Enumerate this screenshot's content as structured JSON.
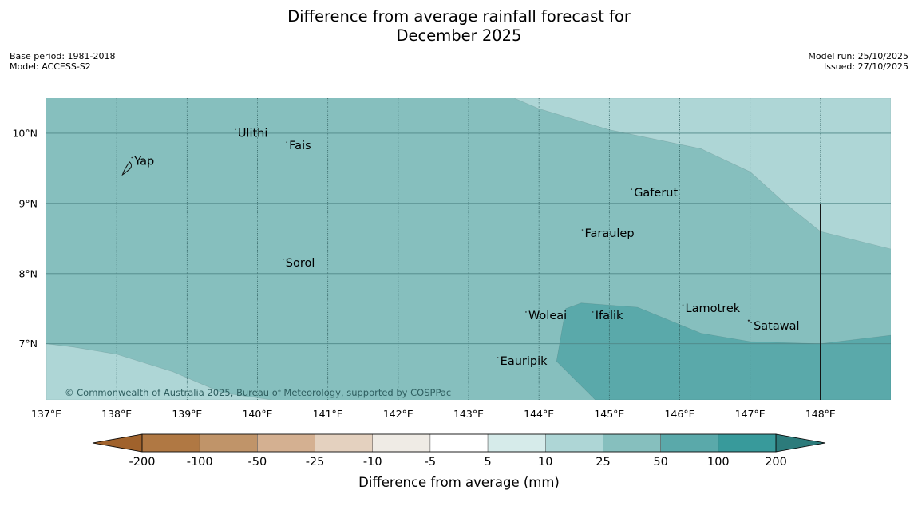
{
  "title": {
    "line1": "Difference from average rainfall forecast for",
    "line2": "December 2025"
  },
  "meta_left": {
    "base_period": "Base period: 1981-2018",
    "model": "Model: ACCESS-S2"
  },
  "meta_right": {
    "model_run": "Model run: 25/10/2025",
    "issued": "Issued: 27/10/2025"
  },
  "map": {
    "lon_range": [
      137,
      149
    ],
    "lat_range": [
      6.2,
      10.5
    ],
    "lon_ticks": [
      {
        "value": 137,
        "label": "137°E"
      },
      {
        "value": 138,
        "label": "138°E"
      },
      {
        "value": 139,
        "label": "139°E"
      },
      {
        "value": 140,
        "label": "140°E"
      },
      {
        "value": 141,
        "label": "141°E"
      },
      {
        "value": 142,
        "label": "142°E"
      },
      {
        "value": 143,
        "label": "143°E"
      },
      {
        "value": 144,
        "label": "144°E"
      },
      {
        "value": 145,
        "label": "145°E"
      },
      {
        "value": 146,
        "label": "146°E"
      },
      {
        "value": 147,
        "label": "147°E"
      },
      {
        "value": 148,
        "label": "148°E"
      }
    ],
    "lat_ticks": [
      {
        "value": 10,
        "label": "10°N"
      },
      {
        "value": 9,
        "label": "9°N"
      },
      {
        "value": 8,
        "label": "8°N"
      },
      {
        "value": 7,
        "label": "7°N"
      }
    ],
    "places": [
      {
        "name": "Yap",
        "lon": 138.25,
        "lat": 9.55
      },
      {
        "name": "Ulithi",
        "lon": 139.72,
        "lat": 9.95
      },
      {
        "name": "Fais",
        "lon": 140.45,
        "lat": 9.77
      },
      {
        "name": "Gaferut",
        "lon": 145.35,
        "lat": 9.1
      },
      {
        "name": "Faraulep",
        "lon": 144.65,
        "lat": 8.52
      },
      {
        "name": "Sorol",
        "lon": 140.4,
        "lat": 8.1
      },
      {
        "name": "Woleai",
        "lon": 143.85,
        "lat": 7.35
      },
      {
        "name": "Ifalik",
        "lon": 144.8,
        "lat": 7.35
      },
      {
        "name": "Lamotrek",
        "lon": 146.08,
        "lat": 7.45
      },
      {
        "name": "Satawal",
        "lon": 147.05,
        "lat": 7.2
      },
      {
        "name": "Eauripik",
        "lon": 143.45,
        "lat": 6.7
      }
    ],
    "boundary_line": {
      "lon": 148,
      "lat_from": 6.2,
      "lat_to": 9.0
    },
    "copyright": "© Commonwealth of Australia 2025, Bureau of Meteorology, supported by COSPPac",
    "zones": [
      {
        "category": "25 to 50",
        "color": "#86bfbe",
        "description": "background"
      },
      {
        "category": "10 to 25",
        "color": "#aed6d6",
        "polygon": [
          [
            143.65,
            10.5
          ],
          [
            144.0,
            10.35
          ],
          [
            145.0,
            10.05
          ],
          [
            146.3,
            9.78
          ],
          [
            147.0,
            9.45
          ],
          [
            147.5,
            9.0
          ],
          [
            148.0,
            8.6
          ],
          [
            149.0,
            8.35
          ],
          [
            149.0,
            10.5
          ]
        ]
      },
      {
        "category": "10 to 25",
        "color": "#aed6d6",
        "polygon": [
          [
            137.0,
            7.0
          ],
          [
            137.4,
            6.95
          ],
          [
            138.0,
            6.85
          ],
          [
            138.8,
            6.6
          ],
          [
            139.5,
            6.3
          ],
          [
            140.2,
            6.2
          ],
          [
            137.0,
            6.2
          ]
        ]
      },
      {
        "category": "50 to 100",
        "color": "#5aa9aa",
        "polygon": [
          [
            144.38,
            7.5
          ],
          [
            144.6,
            7.58
          ],
          [
            145.4,
            7.52
          ],
          [
            146.3,
            7.15
          ],
          [
            147.0,
            7.03
          ],
          [
            148.0,
            7.0
          ],
          [
            149.0,
            7.12
          ],
          [
            149.0,
            6.2
          ],
          [
            144.8,
            6.2
          ],
          [
            144.4,
            6.6
          ],
          [
            144.25,
            6.75
          ]
        ]
      }
    ]
  },
  "colorbar": {
    "label": "Difference from average (mm)",
    "tick_labels": [
      "-200",
      "-100",
      "-50",
      "-25",
      "-10",
      "-5",
      "5",
      "10",
      "25",
      "50",
      "100",
      "200"
    ],
    "colors": [
      "#a0622c",
      "#b07843",
      "#c09469",
      "#d4b091",
      "#e4d1bf",
      "#efebe5",
      "#ffffff",
      "#d6ebea",
      "#aed6d6",
      "#86bfbe",
      "#5aa9aa",
      "#389a9b",
      "#2c7b7b"
    ]
  }
}
